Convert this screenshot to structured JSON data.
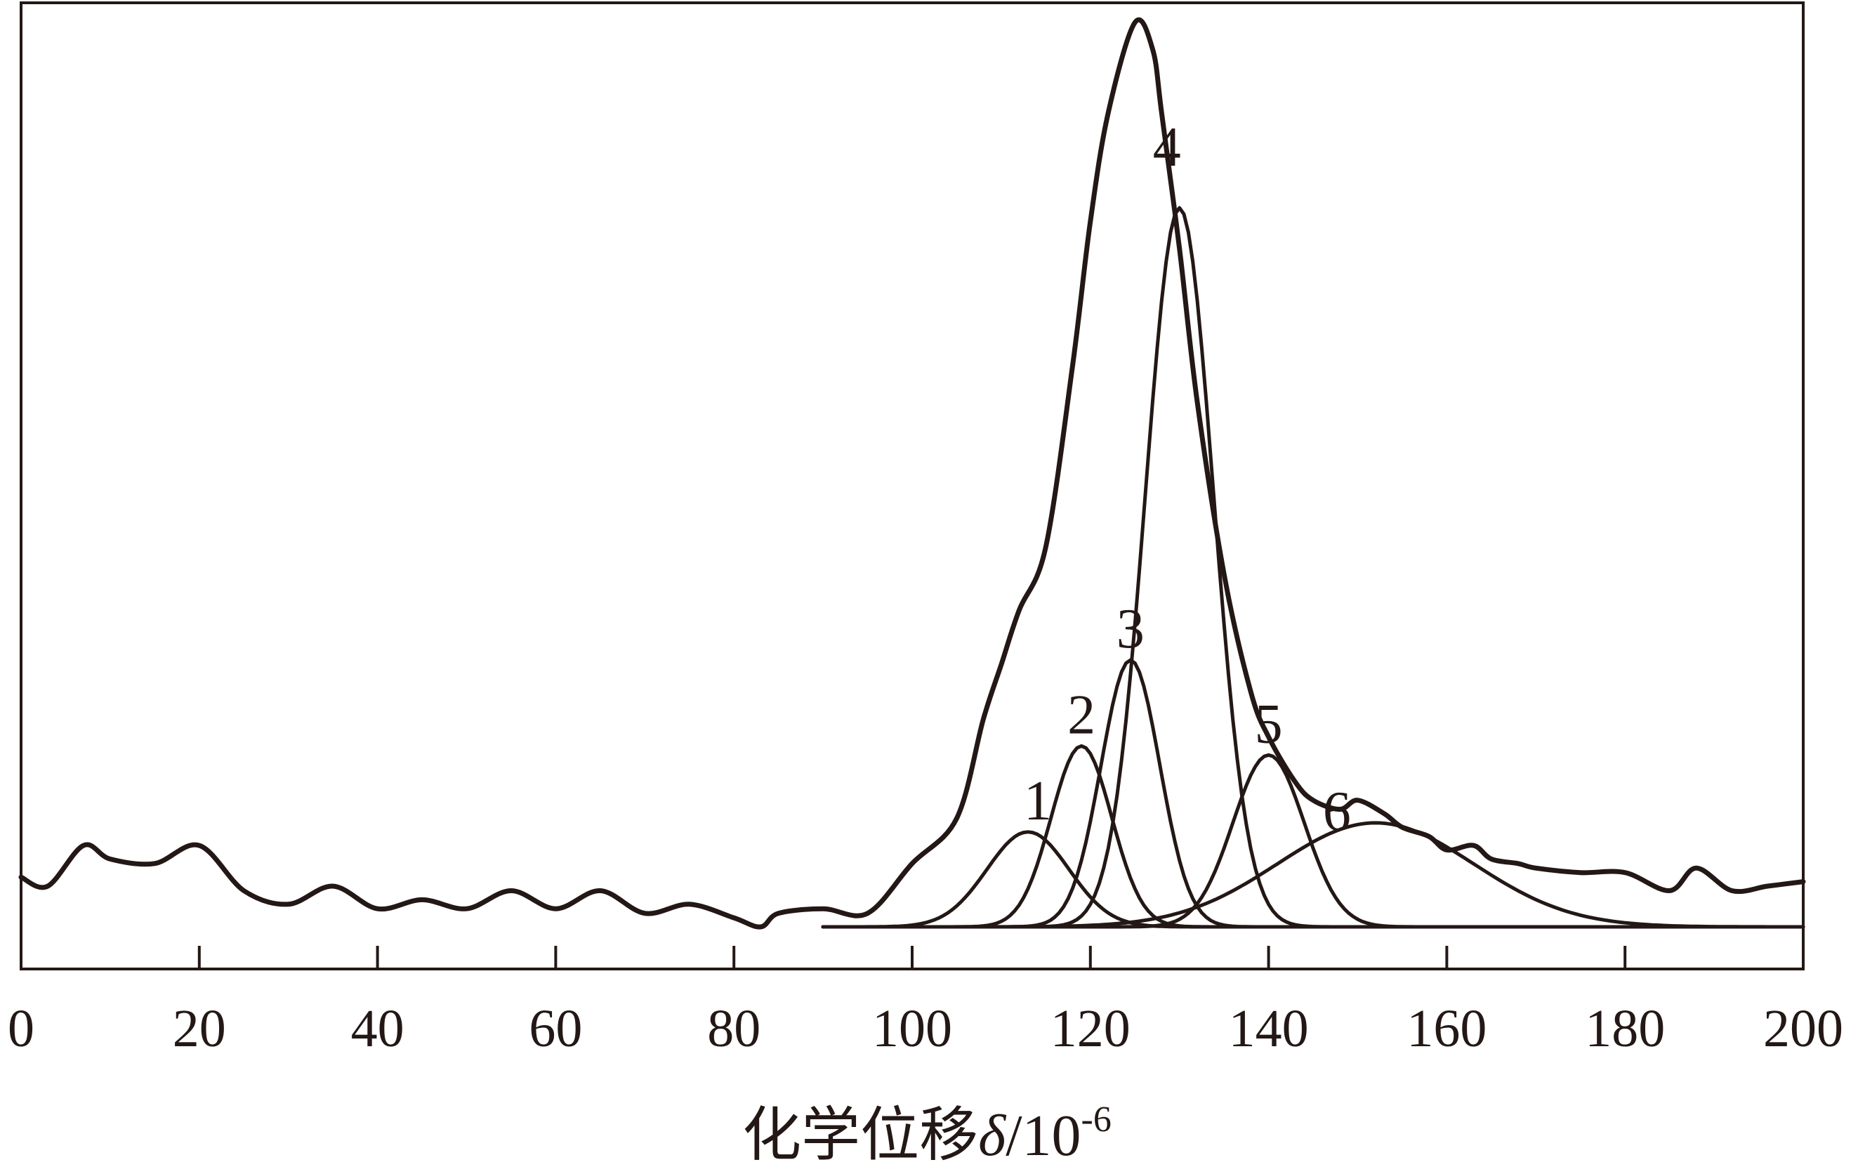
{
  "chart_data": {
    "type": "line",
    "title": "",
    "xlabel": "化学位移",
    "xlabel_symbol": "δ",
    "xlabel_unit": "/10",
    "xlabel_exponent": "-6",
    "xlim": [
      0,
      200
    ],
    "x_ticks": [
      0,
      20,
      40,
      60,
      80,
      100,
      120,
      140,
      160,
      180,
      200
    ],
    "x_tick_labels": [
      "0",
      "20",
      "40",
      "60",
      "80",
      "100",
      "120",
      "140",
      "160",
      "180",
      "200"
    ],
    "ylim": [
      0,
      1
    ],
    "grid": false,
    "legend": "none",
    "spectrum": {
      "name": "",
      "x": [
        0,
        3,
        7,
        10,
        15,
        20,
        25,
        30,
        35,
        40,
        45,
        50,
        55,
        60,
        65,
        70,
        75,
        80,
        83,
        85,
        90,
        95,
        100,
        105,
        108,
        110,
        112,
        115,
        118,
        120,
        122,
        125,
        127,
        128,
        130,
        132,
        135,
        138,
        140,
        143,
        145,
        148,
        150,
        153,
        155,
        158,
        160,
        163,
        165,
        168,
        170,
        175,
        180,
        185,
        188,
        192,
        196,
        200
      ],
      "y": [
        0.055,
        0.045,
        0.09,
        0.075,
        0.07,
        0.09,
        0.04,
        0.025,
        0.045,
        0.02,
        0.03,
        0.02,
        0.04,
        0.02,
        0.04,
        0.015,
        0.025,
        0.01,
        0.0,
        0.015,
        0.02,
        0.015,
        0.07,
        0.12,
        0.23,
        0.29,
        0.35,
        0.42,
        0.62,
        0.78,
        0.9,
        1.0,
        0.97,
        0.9,
        0.75,
        0.58,
        0.39,
        0.26,
        0.21,
        0.16,
        0.14,
        0.13,
        0.14,
        0.125,
        0.11,
        0.1,
        0.085,
        0.09,
        0.075,
        0.07,
        0.065,
        0.06,
        0.06,
        0.04,
        0.065,
        0.04,
        0.045,
        0.05
      ]
    },
    "components": [
      {
        "label": "1",
        "center": 113,
        "height": 0.105,
        "sigma": 4.6
      },
      {
        "label": "2",
        "center": 119,
        "height": 0.2,
        "sigma": 3.4
      },
      {
        "label": "3",
        "center": 124.5,
        "height": 0.295,
        "sigma": 3.3
      },
      {
        "label": "4",
        "center": 130,
        "height": 0.795,
        "sigma": 3.8
      },
      {
        "label": "5",
        "center": 140,
        "height": 0.19,
        "sigma": 4.0
      },
      {
        "label": "6",
        "center": 152,
        "height": 0.115,
        "sigma": 11.0
      }
    ]
  }
}
